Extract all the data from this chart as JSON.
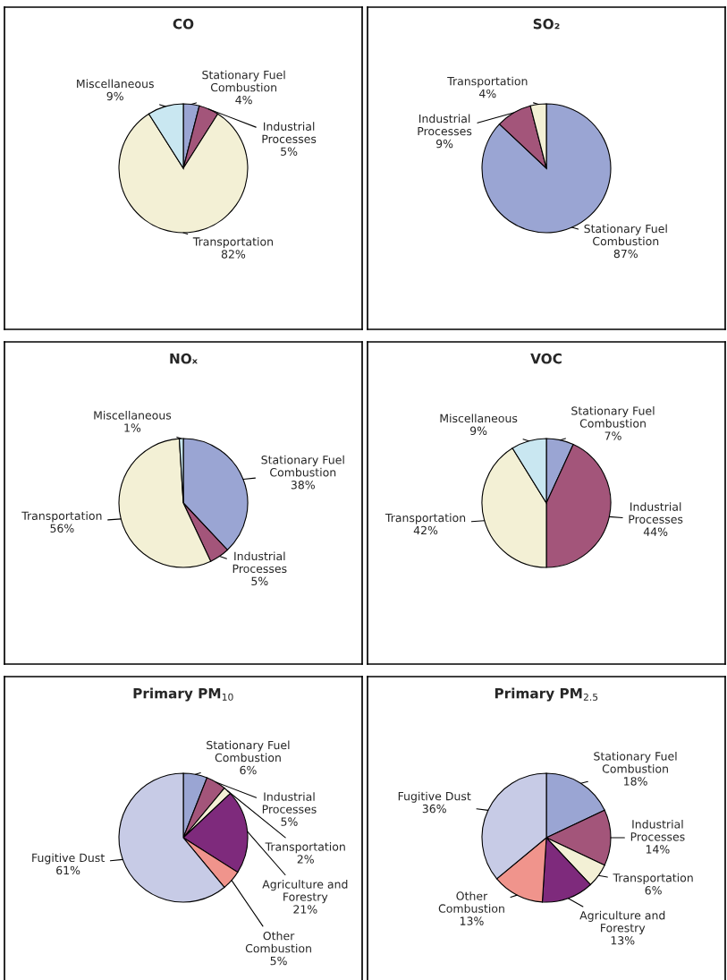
{
  "chart_data": [
    {
      "type": "pie",
      "title": "CO",
      "categories": [
        "Stationary Fuel\nCombustion",
        "Industrial\nProcesses",
        "Transportation",
        "Miscellaneous"
      ],
      "values": [
        4,
        5,
        82,
        9
      ],
      "value_labels": [
        "4%",
        "5%",
        "82%",
        "9%"
      ],
      "colors": [
        "#9aa5d3",
        "#a3557a",
        "#f3f0d5",
        "#c9e7f1"
      ]
    },
    {
      "type": "pie",
      "title": "SO₂",
      "categories": [
        "Stationary Fuel\nCombustion",
        "Industrial\nProcesses",
        "Transportation"
      ],
      "values": [
        87,
        9,
        4
      ],
      "value_labels": [
        "87%",
        "9%",
        "4%"
      ],
      "colors": [
        "#9aa5d3",
        "#a3557a",
        "#f3f0d5"
      ]
    },
    {
      "type": "pie",
      "title": "NOₓ",
      "categories": [
        "Stationary Fuel\nCombustion",
        "Industrial\nProcesses",
        "Transportation",
        "Miscellaneous"
      ],
      "values": [
        38,
        5,
        56,
        1
      ],
      "value_labels": [
        "38%",
        "5%",
        "56%",
        "1%"
      ],
      "colors": [
        "#9aa5d3",
        "#a3557a",
        "#f3f0d5",
        "#c9e7f1"
      ]
    },
    {
      "type": "pie",
      "title": "VOC",
      "categories": [
        "Stationary Fuel\nCombustion",
        "Industrial\nProcesses",
        "Transportation",
        "Miscellaneous"
      ],
      "values": [
        7,
        44,
        42,
        9
      ],
      "value_labels": [
        "7%",
        "44%",
        "42%",
        "9%"
      ],
      "colors": [
        "#9aa5d3",
        "#a3557a",
        "#f3f0d5",
        "#c9e7f1"
      ]
    },
    {
      "type": "pie",
      "title": "Primary PM$_{10}$",
      "categories": [
        "Stationary Fuel\nCombustion",
        "Industrial\nProcesses",
        "Transportation",
        "Agriculture and\nForestry",
        "Other\nCombustion",
        "Fugitive Dust"
      ],
      "values": [
        6,
        5,
        2,
        21,
        5,
        61
      ],
      "value_labels": [
        "6%",
        "5%",
        "2%",
        "21%",
        "5%",
        "61%"
      ],
      "colors": [
        "#9aa5d3",
        "#a3557a",
        "#f3f0d5",
        "#7e2a7c",
        "#f0948c",
        "#c7cbe6"
      ]
    },
    {
      "type": "pie",
      "title": "Primary PM$_{2.5}$",
      "categories": [
        "Stationary Fuel\nCombustion",
        "Industrial\nProcesses",
        "Transportation",
        "Agriculture and\nForestry",
        "Other\nCombustion",
        "Fugitive Dust"
      ],
      "values": [
        18,
        14,
        6,
        13,
        13,
        36
      ],
      "value_labels": [
        "18%",
        "14%",
        "6%",
        "13%",
        "13%",
        "36%"
      ],
      "colors": [
        "#9aa5d3",
        "#a3557a",
        "#f3f0d5",
        "#7e2a7c",
        "#f0948c",
        "#c7cbe6"
      ]
    }
  ]
}
